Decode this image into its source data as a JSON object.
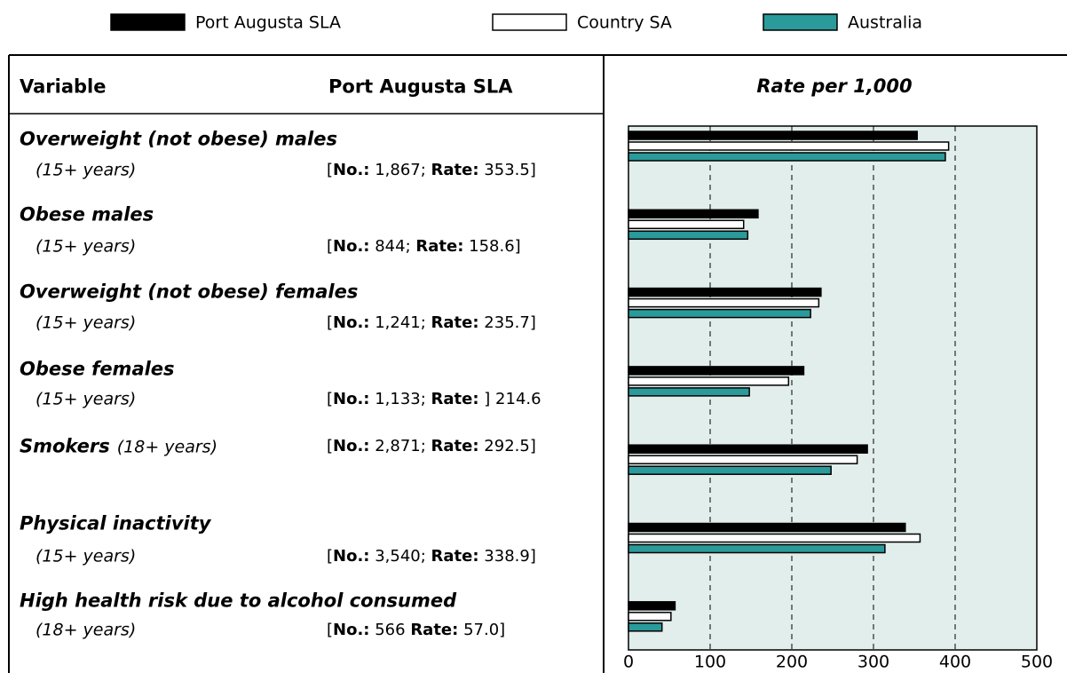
{
  "chart_data": {
    "type": "bar",
    "orientation": "horizontal",
    "title": "Rate per 1,000",
    "series": [
      {
        "name": "Port Augusta SLA",
        "color": "#000000",
        "values": [
          353.5,
          158.6,
          235.7,
          214.6,
          292.5,
          338.9,
          57.0
        ]
      },
      {
        "name": "Country SA",
        "color": "#ffffff",
        "values": [
          392,
          141,
          233,
          196,
          280,
          357,
          52
        ]
      },
      {
        "name": "Australia",
        "color": "#2a9a9a",
        "values": [
          388,
          146,
          223,
          148,
          248,
          314,
          41
        ]
      }
    ],
    "xlim": [
      0,
      500
    ],
    "xticks": [
      0,
      100,
      200,
      300,
      400,
      500
    ],
    "grid": true,
    "background": "#e2eeeb"
  },
  "table": {
    "headers": [
      "Variable",
      "Port Augusta SLA"
    ],
    "rows": [
      {
        "name": "Overweight (not obese) males",
        "age": "(15+ years)",
        "stats": [
          {
            "text": "[",
            "bold": false
          },
          {
            "text": "No.:",
            "bold": true
          },
          {
            "text": " 1,867; ",
            "bold": false
          },
          {
            "text": "Rate:",
            "bold": true
          },
          {
            "text": " 353.5]",
            "bold": false
          }
        ]
      },
      {
        "name": "Obese males",
        "age": "(15+ years)",
        "stats": [
          {
            "text": "[",
            "bold": false
          },
          {
            "text": "No.:",
            "bold": true
          },
          {
            "text": " 844; ",
            "bold": false
          },
          {
            "text": "Rate:",
            "bold": true
          },
          {
            "text": " 158.6]",
            "bold": false
          }
        ]
      },
      {
        "name": "Overweight (not obese) females",
        "age": "(15+ years)",
        "stats": [
          {
            "text": "[",
            "bold": false
          },
          {
            "text": "No.:",
            "bold": true
          },
          {
            "text": " 1,241; ",
            "bold": false
          },
          {
            "text": "Rate:",
            "bold": true
          },
          {
            "text": " 235.7]",
            "bold": false
          }
        ]
      },
      {
        "name": "Obese females",
        "age": "(15+ years)",
        "stats": [
          {
            "text": "[",
            "bold": false
          },
          {
            "text": "No.:",
            "bold": true
          },
          {
            "text": " 1,133; ",
            "bold": false
          },
          {
            "text": "Rate:",
            "bold": true
          },
          {
            "text": " ] 214.6",
            "bold": false
          }
        ]
      },
      {
        "name": "Smokers",
        "age": "(18+ years)",
        "stats": [
          {
            "text": "[",
            "bold": false
          },
          {
            "text": "No.:",
            "bold": true
          },
          {
            "text": " 2,871; ",
            "bold": false
          },
          {
            "text": "Rate:",
            "bold": true
          },
          {
            "text": " 292.5]",
            "bold": false
          }
        ]
      },
      {
        "name": "Physical inactivity",
        "age": "(15+ years)",
        "stats": [
          {
            "text": "[",
            "bold": false
          },
          {
            "text": "No.:",
            "bold": true
          },
          {
            "text": " 3,540; ",
            "bold": false
          },
          {
            "text": "Rate:",
            "bold": true
          },
          {
            "text": " 338.9]",
            "bold": false
          }
        ]
      },
      {
        "name": "High health risk due to alcohol consumed",
        "age": "(18+ years)",
        "stats": [
          {
            "text": "[",
            "bold": false
          },
          {
            "text": "No.:",
            "bold": true
          },
          {
            "text": " 566 ",
            "bold": false
          },
          {
            "text": "Rate:",
            "bold": true
          },
          {
            "text": " 57.0]",
            "bold": false
          }
        ]
      }
    ]
  }
}
